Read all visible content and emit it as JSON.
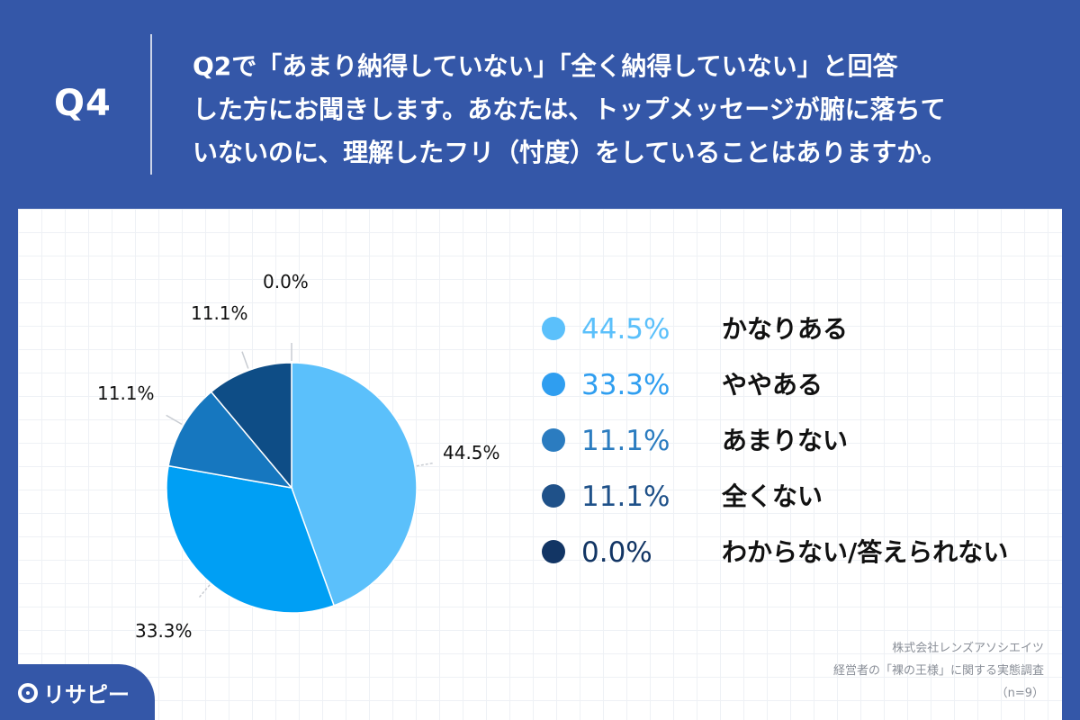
{
  "header": {
    "q_label": "Q4",
    "question_lines": [
      "Q2で「あまり納得していない」「全く納得していない」と回答",
      "した方にお聞きします。あなたは、トップメッセージが腑に落ちて",
      "いないのに、理解したフリ（忖度）をしていることはありますか。"
    ]
  },
  "chart_data": {
    "type": "pie",
    "start": "12 o'clock",
    "direction": "clockwise",
    "slices": [
      {
        "label": "かなりある",
        "value": 44.5,
        "display": "44.5%",
        "color": "#5bc0fb"
      },
      {
        "label": "ややある",
        "value": 33.3,
        "display": "33.3%",
        "color": "#009ff4"
      },
      {
        "label": "あまりない",
        "value": 11.1,
        "display": "11.1%",
        "color": "#1677bf"
      },
      {
        "label": "全くない",
        "value": 11.1,
        "display": "11.1%",
        "color": "#0e4d86"
      },
      {
        "label": "わからない/答えられない",
        "value": 0.0,
        "display": "0.0%",
        "color": "#0b3366"
      }
    ]
  },
  "legend": [
    {
      "pct": "44.5%",
      "text": "かなりある",
      "dot_color": "#5bc0fb",
      "pct_color": "#5bc0fb"
    },
    {
      "pct": "33.3%",
      "text": "ややある",
      "dot_color": "#2f9ef0",
      "pct_color": "#2f9ef0"
    },
    {
      "pct": "11.1%",
      "text": "あまりない",
      "dot_color": "#2b7cc0",
      "pct_color": "#2b7cc0"
    },
    {
      "pct": "11.1%",
      "text": "全くない",
      "dot_color": "#1f5189",
      "pct_color": "#1f5189"
    },
    {
      "pct": "0.0%",
      "text": "わからない/答えられない",
      "dot_color": "#123564",
      "pct_color": "#123564"
    }
  ],
  "source": {
    "company": "株式会社レンズアソシエイツ",
    "survey": "経営者の「裸の王様」に関する実態調査",
    "n": "（n=9）"
  },
  "logo": {
    "text": "リサピー"
  },
  "colors": {
    "header_bg": "#3457a8",
    "panel_bg": "#ffffff",
    "label_text": "#111111"
  }
}
